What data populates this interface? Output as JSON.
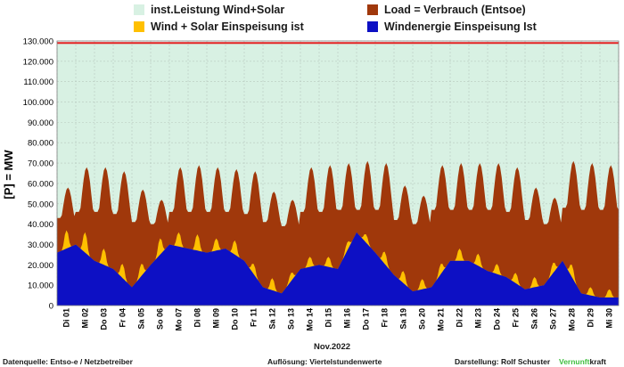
{
  "chart_data": {
    "type": "area",
    "title": "",
    "xlabel": "Nov.2022",
    "ylabel": "[P] = MW",
    "ylim": [
      0,
      130000
    ],
    "yticks": [
      "0",
      "10.000",
      "20.000",
      "30.000",
      "40.000",
      "50.000",
      "60.000",
      "70.000",
      "80.000",
      "90.000",
      "100.000",
      "110.000",
      "120.000",
      "130.000"
    ],
    "categories": [
      "Di 01",
      "Mi 02",
      "Do 03",
      "Fr 04",
      "Sa 05",
      "So 06",
      "Mo 07",
      "Di 08",
      "Mi 09",
      "Do 10",
      "Fr 11",
      "Sa 12",
      "So 13",
      "Mo 14",
      "Di 15",
      "Mi 16",
      "Do 17",
      "Fr 18",
      "Sa 19",
      "So 20",
      "Mo 21",
      "Di 22",
      "Mi 23",
      "Do 24",
      "Fr 25",
      "Sa 26",
      "So 27",
      "Mo 28",
      "Di 29",
      "Mi 30"
    ],
    "grid": true,
    "series": [
      {
        "name": "inst.Leistung Wind+Solar",
        "color": "#d8f1e3",
        "values": [
          129000,
          129000,
          129000,
          129000,
          129000,
          129000,
          129000,
          129000,
          129000,
          129000,
          129000,
          129000,
          129000,
          129000,
          129000,
          129000,
          129000,
          129000,
          129000,
          129000,
          129000,
          129000,
          129000,
          129000,
          129000,
          129000,
          129000,
          129000,
          129000,
          129000
        ]
      },
      {
        "name": "Load =  Verbrauch (Entsoe)",
        "color": "#a0380b",
        "peak": [
          58000,
          68000,
          68000,
          66000,
          57000,
          52000,
          68000,
          69000,
          68000,
          67000,
          66000,
          56000,
          52000,
          68000,
          69000,
          70000,
          71000,
          70000,
          59000,
          54000,
          69000,
          70000,
          70000,
          70000,
          68000,
          58000,
          53000,
          71000,
          70000,
          69000
        ],
        "trough": [
          43000,
          46000,
          46000,
          45000,
          41000,
          40000,
          46000,
          46000,
          46000,
          46000,
          45000,
          41000,
          39000,
          46000,
          46000,
          47000,
          47000,
          47000,
          42000,
          40000,
          47000,
          47000,
          47000,
          47000,
          46000,
          42000,
          40000,
          48000,
          47000,
          47000
        ]
      },
      {
        "name": "Wind + Solar Einspeisung ist",
        "color": "#ffc000",
        "solar_peak": [
          9000,
          10000,
          8000,
          7000,
          6000,
          8000,
          7000,
          8000,
          6000,
          7000,
          5000,
          6000,
          4000,
          5000,
          5000,
          4000,
          4000,
          6000,
          6000,
          5000,
          5000,
          6000,
          6000,
          5000,
          5000,
          5000,
          5000,
          6000,
          4000,
          4000
        ]
      },
      {
        "name": "Windenergie Einspeisung Ist",
        "color": "#0d10c4",
        "values": [
          26000,
          30000,
          22000,
          18000,
          9000,
          20000,
          30000,
          28000,
          26000,
          28000,
          22000,
          9000,
          6000,
          18000,
          20000,
          18000,
          36000,
          26000,
          15000,
          7000,
          9000,
          22000,
          22000,
          17000,
          14000,
          8000,
          10000,
          22000,
          6000,
          4000
        ]
      }
    ]
  },
  "footer": {
    "source": "Datenquelle:  Entso-e  / Netzbetreiber",
    "resolution": "Auflösung: Viertelstundenwerte",
    "author": "Darstellung:  Rolf Schuster",
    "brand_prefix": "Vernunft",
    "brand_suffix": "kraft"
  }
}
